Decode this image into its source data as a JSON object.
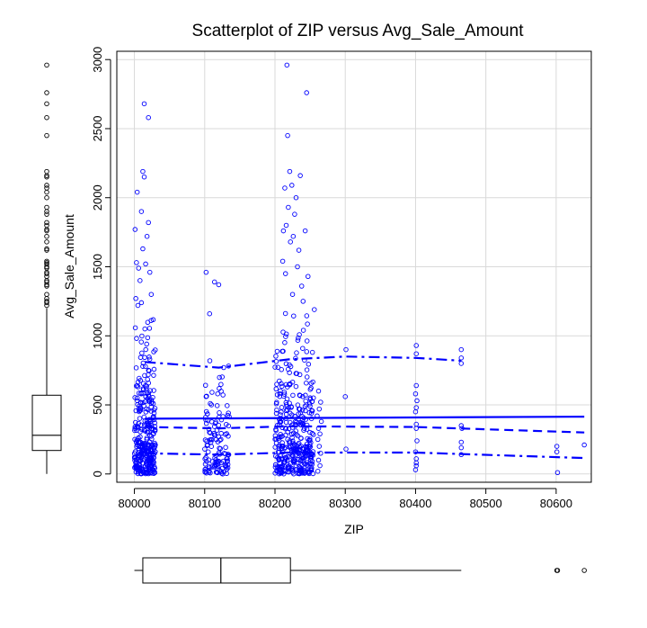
{
  "chart_data": {
    "type": "scatter",
    "title": "Scatterplot of ZIP versus Avg_Sale_Amount",
    "xlabel": "ZIP",
    "ylabel": "Avg_Sale_Amount",
    "xlim": [
      79975,
      80650
    ],
    "ylim": [
      -60,
      3060
    ],
    "x_ticks": [
      80000,
      80100,
      80200,
      80300,
      80400,
      80500,
      80600
    ],
    "x_tick_labels": [
      "80000",
      "80100",
      "80200",
      "80300",
      "80400",
      "80500",
      "80600"
    ],
    "y_ticks": [
      0,
      500,
      1000,
      1500,
      2000,
      2500,
      3000
    ],
    "y_tick_labels": [
      "0",
      "500",
      "1000",
      "1500",
      "2000",
      "2500",
      "3000"
    ],
    "grid": true,
    "point_color": "#0000ff",
    "line_color": "#0000ff",
    "clusters": [
      {
        "x_min": 80000,
        "x_max": 80030,
        "n": 340,
        "y_median": 300,
        "y_max": 1150
      },
      {
        "x_min": 80100,
        "x_max": 80135,
        "n": 130,
        "y_median": 270,
        "y_max": 1100
      },
      {
        "x_min": 80200,
        "x_max": 80255,
        "n": 380,
        "y_median": 330,
        "y_max": 1200
      }
    ],
    "points": [
      {
        "x": 80014,
        "y": 2680
      },
      {
        "x": 80020,
        "y": 2580
      },
      {
        "x": 80012,
        "y": 2190
      },
      {
        "x": 80014,
        "y": 2150
      },
      {
        "x": 80004,
        "y": 2040
      },
      {
        "x": 80010,
        "y": 1900
      },
      {
        "x": 80020,
        "y": 1820
      },
      {
        "x": 80001,
        "y": 1770
      },
      {
        "x": 80018,
        "y": 1720
      },
      {
        "x": 80012,
        "y": 1630
      },
      {
        "x": 80003,
        "y": 1530
      },
      {
        "x": 80016,
        "y": 1520
      },
      {
        "x": 80006,
        "y": 1490
      },
      {
        "x": 80022,
        "y": 1460
      },
      {
        "x": 80008,
        "y": 1400
      },
      {
        "x": 80024,
        "y": 1300
      },
      {
        "x": 80002,
        "y": 1270
      },
      {
        "x": 80010,
        "y": 1240
      },
      {
        "x": 80005,
        "y": 1220
      },
      {
        "x": 80102,
        "y": 1460
      },
      {
        "x": 80114,
        "y": 1390
      },
      {
        "x": 80120,
        "y": 1370
      },
      {
        "x": 80107,
        "y": 1160
      },
      {
        "x": 80217,
        "y": 2960
      },
      {
        "x": 80245,
        "y": 2760
      },
      {
        "x": 80218,
        "y": 2450
      },
      {
        "x": 80221,
        "y": 2190
      },
      {
        "x": 80236,
        "y": 2160
      },
      {
        "x": 80224,
        "y": 2090
      },
      {
        "x": 80214,
        "y": 2070
      },
      {
        "x": 80230,
        "y": 2000
      },
      {
        "x": 80219,
        "y": 1930
      },
      {
        "x": 80228,
        "y": 1880
      },
      {
        "x": 80216,
        "y": 1800
      },
      {
        "x": 80212,
        "y": 1760
      },
      {
        "x": 80243,
        "y": 1760
      },
      {
        "x": 80226,
        "y": 1720
      },
      {
        "x": 80222,
        "y": 1680
      },
      {
        "x": 80234,
        "y": 1620
      },
      {
        "x": 80211,
        "y": 1540
      },
      {
        "x": 80232,
        "y": 1500
      },
      {
        "x": 80215,
        "y": 1450
      },
      {
        "x": 80247,
        "y": 1430
      },
      {
        "x": 80238,
        "y": 1360
      },
      {
        "x": 80225,
        "y": 1300
      },
      {
        "x": 80240,
        "y": 1250
      },
      {
        "x": 80256,
        "y": 1190
      },
      {
        "x": 80262,
        "y": 600
      },
      {
        "x": 80265,
        "y": 520
      },
      {
        "x": 80263,
        "y": 470
      },
      {
        "x": 80260,
        "y": 420
      },
      {
        "x": 80266,
        "y": 380
      },
      {
        "x": 80262,
        "y": 330
      },
      {
        "x": 80264,
        "y": 290
      },
      {
        "x": 80261,
        "y": 250
      },
      {
        "x": 80263,
        "y": 200
      },
      {
        "x": 80265,
        "y": 150
      },
      {
        "x": 80262,
        "y": 100
      },
      {
        "x": 80264,
        "y": 60
      },
      {
        "x": 80261,
        "y": 20
      },
      {
        "x": 80301,
        "y": 900
      },
      {
        "x": 80300,
        "y": 560
      },
      {
        "x": 80301,
        "y": 180
      },
      {
        "x": 80401,
        "y": 930
      },
      {
        "x": 80401,
        "y": 870
      },
      {
        "x": 80401,
        "y": 640
      },
      {
        "x": 80400,
        "y": 580
      },
      {
        "x": 80402,
        "y": 530
      },
      {
        "x": 80401,
        "y": 480
      },
      {
        "x": 80400,
        "y": 450
      },
      {
        "x": 80401,
        "y": 360
      },
      {
        "x": 80401,
        "y": 330
      },
      {
        "x": 80402,
        "y": 240
      },
      {
        "x": 80400,
        "y": 160
      },
      {
        "x": 80401,
        "y": 110
      },
      {
        "x": 80401,
        "y": 80
      },
      {
        "x": 80401,
        "y": 60
      },
      {
        "x": 80400,
        "y": 30
      },
      {
        "x": 80465,
        "y": 900
      },
      {
        "x": 80465,
        "y": 840
      },
      {
        "x": 80465,
        "y": 800
      },
      {
        "x": 80465,
        "y": 350
      },
      {
        "x": 80466,
        "y": 330
      },
      {
        "x": 80465,
        "y": 230
      },
      {
        "x": 80465,
        "y": 190
      },
      {
        "x": 80465,
        "y": 140
      },
      {
        "x": 80601,
        "y": 200
      },
      {
        "x": 80601,
        "y": 160
      },
      {
        "x": 80602,
        "y": 10
      },
      {
        "x": 80640,
        "y": 210
      }
    ],
    "lines": [
      {
        "name": "",
        "style": "solid",
        "points": [
          [
            80015,
            400
          ],
          [
            80640,
            415
          ]
        ]
      },
      {
        "name": "",
        "style": "dashed",
        "points": [
          [
            80015,
            340
          ],
          [
            80120,
            330
          ],
          [
            80220,
            345
          ],
          [
            80400,
            340
          ],
          [
            80640,
            300
          ]
        ]
      },
      {
        "name": "",
        "style": "dashdot",
        "points": [
          [
            80015,
            810
          ],
          [
            80120,
            770
          ],
          [
            80220,
            830
          ],
          [
            80300,
            850
          ],
          [
            80400,
            840
          ],
          [
            80465,
            820
          ]
        ]
      },
      {
        "name": "",
        "style": "dashdot",
        "points": [
          [
            80015,
            150
          ],
          [
            80120,
            140
          ],
          [
            80220,
            155
          ],
          [
            80400,
            155
          ],
          [
            80640,
            115
          ]
        ]
      }
    ],
    "y_boxplot": {
      "min": 0,
      "q1": 170,
      "median": 280,
      "q3": 570,
      "whisker_high": 1200,
      "outliers": [
        2960,
        2760,
        2680,
        2580,
        2450,
        2190,
        2160,
        2150,
        2090,
        2070,
        2040,
        2000,
        1930,
        1900,
        1880,
        1820,
        1800,
        1770,
        1760,
        1720,
        1680,
        1630,
        1620,
        1540,
        1530,
        1520,
        1500,
        1490,
        1460,
        1450,
        1430,
        1400,
        1390,
        1370,
        1360,
        1300,
        1270,
        1250,
        1240,
        1220
      ]
    },
    "x_boxplot": {
      "min": 80000,
      "q1": 80012,
      "median": 80123,
      "q3": 80222,
      "whisker_high": 80465,
      "outliers": [
        80601,
        80602,
        80640
      ]
    }
  }
}
